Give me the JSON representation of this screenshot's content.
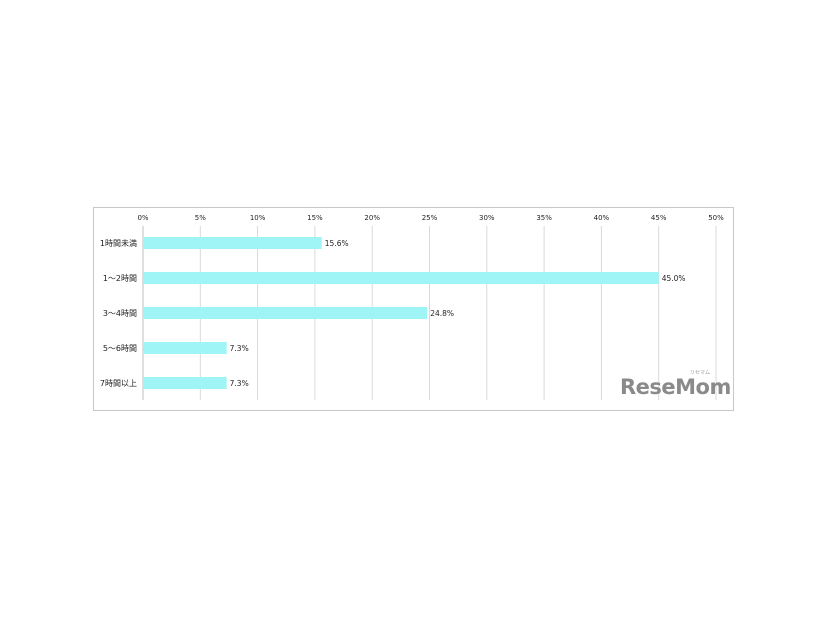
{
  "chart_data": {
    "type": "bar",
    "orientation": "horizontal",
    "categories": [
      "1時間未満",
      "1～2時間",
      "3～4時間",
      "5～6時間",
      "7時間以上"
    ],
    "values": [
      15.6,
      45.0,
      24.8,
      7.3,
      7.3
    ],
    "value_labels": [
      "15.6%",
      "45.0%",
      "24.8%",
      "7.3%",
      "7.3%"
    ],
    "xlim": [
      0,
      50
    ],
    "x_ticks": [
      0,
      5,
      10,
      15,
      20,
      25,
      30,
      35,
      40,
      45,
      50
    ],
    "x_tick_labels": [
      "0%",
      "5%",
      "10%",
      "15%",
      "20%",
      "25%",
      "30%",
      "35%",
      "40%",
      "45%",
      "50%"
    ],
    "x_axis_position": "top",
    "grid": true,
    "legend": false,
    "bar_color": "#9ff5f5"
  },
  "watermark": {
    "logo_text": "ReseMom",
    "reading": "リセマム"
  }
}
